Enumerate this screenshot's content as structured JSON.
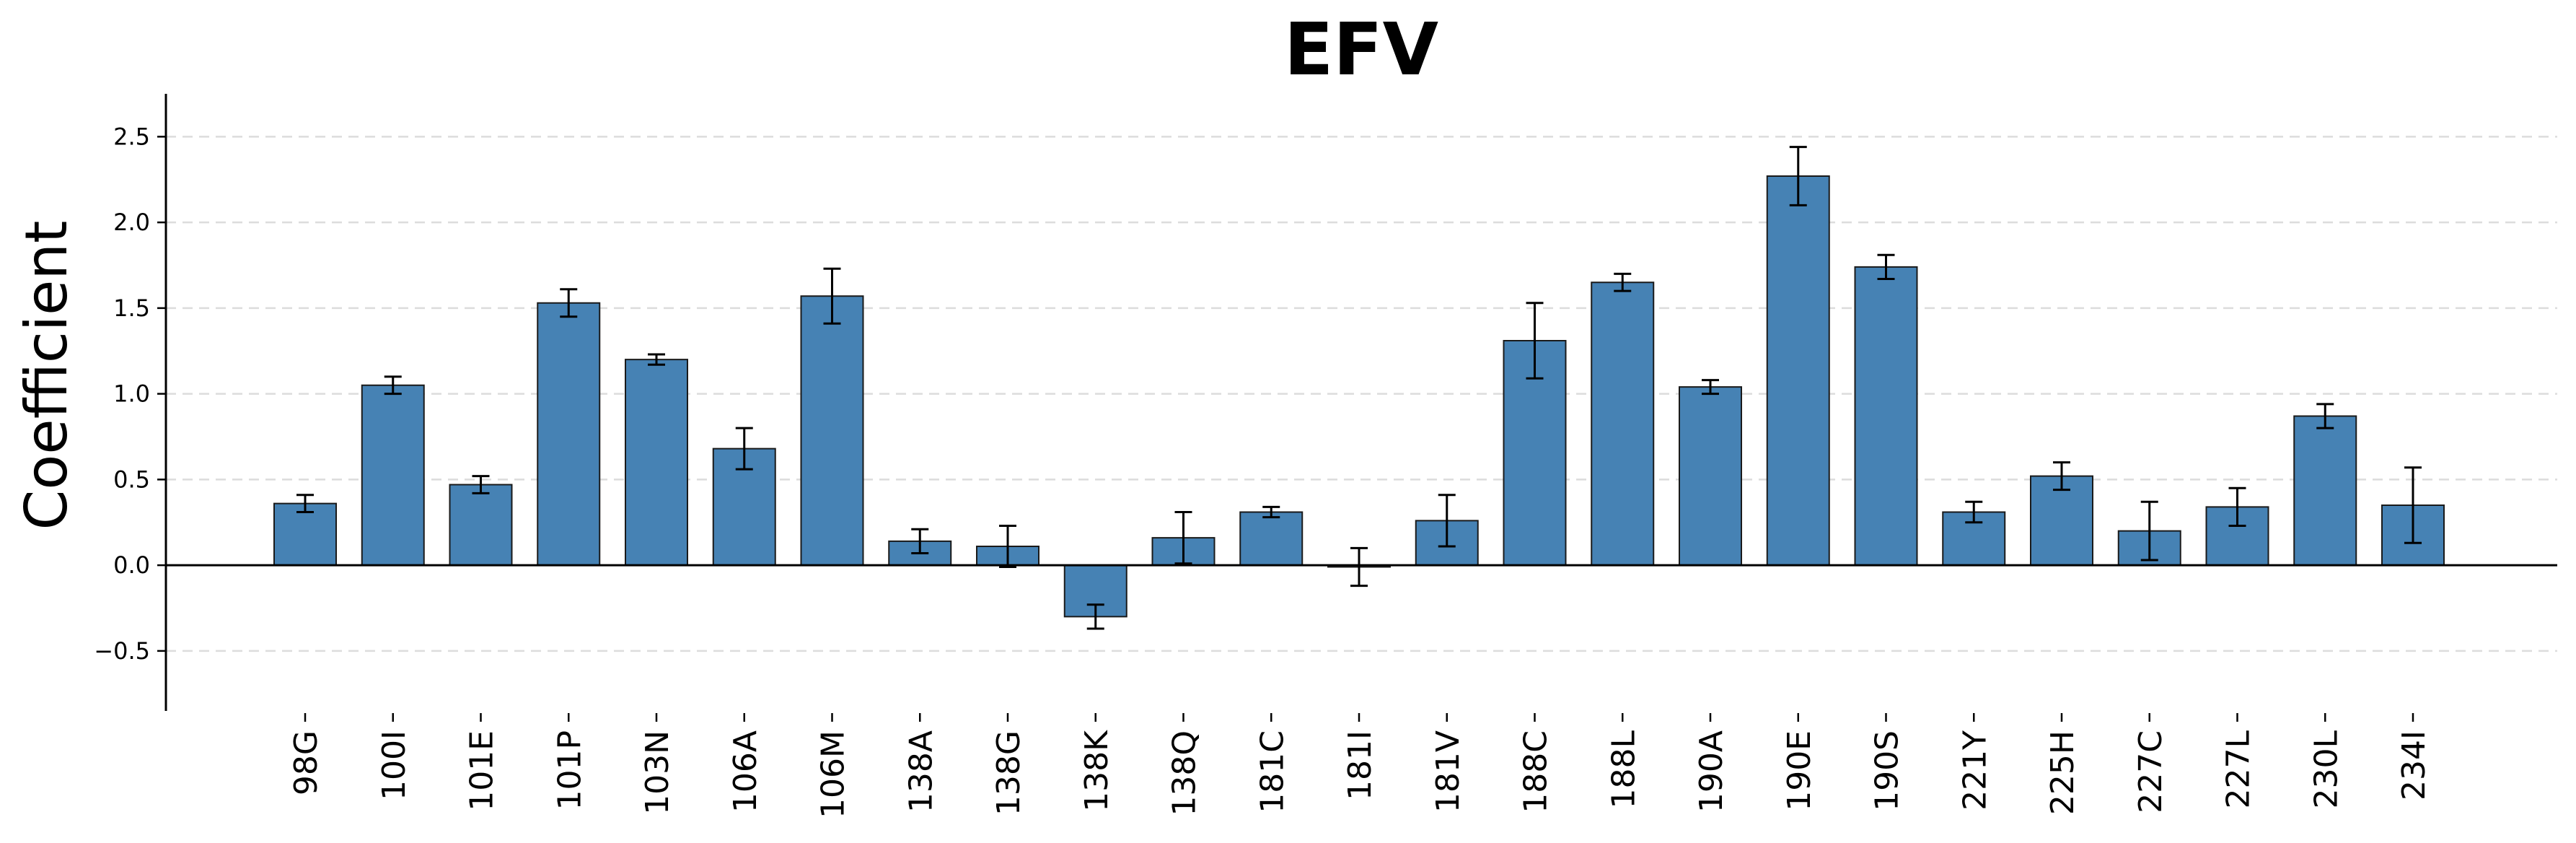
{
  "chart_data": {
    "type": "bar",
    "title": "EFV",
    "xlabel": "",
    "ylabel": "Coefficient",
    "ylim": [
      -0.85,
      2.75
    ],
    "yticks": [
      -0.5,
      0.0,
      0.5,
      1.0,
      1.5,
      2.0,
      2.5
    ],
    "ytick_labels": [
      "−0.5",
      "0.0",
      "0.5",
      "1.0",
      "1.5",
      "2.0",
      "2.5"
    ],
    "grid": "y-dashed",
    "bar_color": "#4682b4",
    "categories": [
      "98G",
      "100I",
      "101E",
      "101P",
      "103N",
      "106A",
      "106M",
      "138A",
      "138G",
      "138K",
      "138Q",
      "181C",
      "181I",
      "181V",
      "188C",
      "188L",
      "190A",
      "190E",
      "190S",
      "221Y",
      "225H",
      "227C",
      "227L",
      "230L",
      "234I"
    ],
    "values": [
      0.36,
      1.05,
      0.47,
      1.53,
      1.2,
      0.68,
      1.57,
      0.14,
      0.11,
      -0.3,
      0.16,
      0.31,
      -0.01,
      0.26,
      1.31,
      1.65,
      1.04,
      2.27,
      1.74,
      0.31,
      0.52,
      0.2,
      0.34,
      0.87,
      0.35
    ],
    "errors": [
      0.05,
      0.05,
      0.05,
      0.08,
      0.03,
      0.12,
      0.16,
      0.07,
      0.12,
      0.07,
      0.15,
      0.03,
      0.11,
      0.15,
      0.22,
      0.05,
      0.04,
      0.17,
      0.07,
      0.06,
      0.08,
      0.17,
      0.11,
      0.07,
      0.22
    ]
  }
}
